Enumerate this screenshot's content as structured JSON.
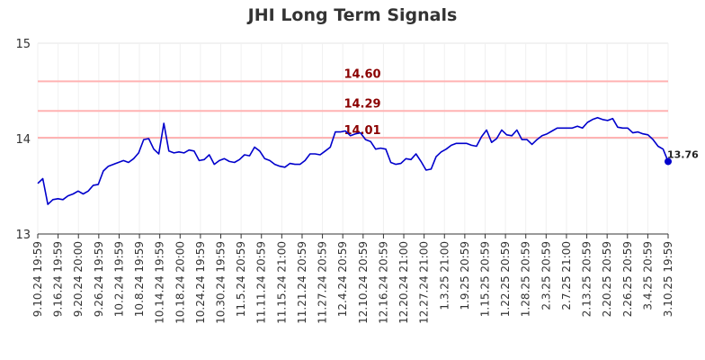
{
  "chart_data": {
    "type": "line",
    "title": "JHI Long Term Signals",
    "xlabel": "",
    "ylabel": "",
    "ylim": [
      13,
      15
    ],
    "yticks": [
      "13",
      "14",
      "15"
    ],
    "grid": true,
    "colors": {
      "line": "#0000cc",
      "signal_line": "#ffb3b3",
      "signal_text": "#8b0000"
    },
    "x_tick_labels": [
      "9.10.24 19:59",
      "9.16.24 19:59",
      "9.20.24 20:00",
      "9.26.24 19:59",
      "10.2.24 19:59",
      "10.8.24 19:59",
      "10.14.24 19:59",
      "10.18.24 20:00",
      "10.24.24 19:59",
      "10.30.24 19:59",
      "11.5.24 20:59",
      "11.11.24 20:59",
      "11.15.24 21:00",
      "11.21.24 20:59",
      "11.27.24 20:59",
      "12.4.24 20:59",
      "12.10.24 20:59",
      "12.16.24 20:59",
      "12.20.24 21:00",
      "12.27.24 21:00",
      "1.3.25 21:00",
      "1.9.25 20:59",
      "1.15.25 20:59",
      "1.22.25 20:59",
      "1.28.25 20:59",
      "2.3.25 20:59",
      "2.7.25 21:00",
      "2.13.25 20:59",
      "2.20.25 20:59",
      "2.26.25 20:59",
      "3.4.25 20:59",
      "3.10.25 19:59"
    ],
    "signals": [
      {
        "value": 14.6,
        "label": "14.60"
      },
      {
        "value": 14.29,
        "label": "14.29"
      },
      {
        "value": 14.01,
        "label": "14.01"
      }
    ],
    "last_value_label": "13.76",
    "series": [
      {
        "values": [
          13.53,
          13.58,
          13.31,
          13.36,
          13.37,
          13.36,
          13.4,
          13.42,
          13.45,
          13.42,
          13.45,
          13.51,
          13.52,
          13.66,
          13.71,
          13.73,
          13.75,
          13.77,
          13.75,
          13.79,
          13.85,
          13.99,
          14.0,
          13.89,
          13.84,
          14.16,
          13.87,
          13.85,
          13.86,
          13.85,
          13.88,
          13.87,
          13.77,
          13.78,
          13.83,
          13.73,
          13.77,
          13.79,
          13.76,
          13.75,
          13.78,
          13.83,
          13.82,
          13.91,
          13.87,
          13.79,
          13.77,
          13.73,
          13.71,
          13.7,
          13.74,
          13.73,
          13.73,
          13.77,
          13.84,
          13.84,
          13.83,
          13.87,
          13.91,
          14.07,
          14.07,
          14.08,
          14.03,
          14.05,
          14.06,
          13.99,
          13.97,
          13.89,
          13.9,
          13.89,
          13.75,
          13.73,
          13.74,
          13.79,
          13.78,
          13.84,
          13.76,
          13.67,
          13.68,
          13.81,
          13.86,
          13.89,
          13.93,
          13.95,
          13.95,
          13.95,
          13.93,
          13.92,
          14.02,
          14.09,
          13.96,
          14.0,
          14.09,
          14.04,
          14.03,
          14.09,
          13.99,
          13.99,
          13.94,
          13.99,
          14.03,
          14.05,
          14.08,
          14.11,
          14.11,
          14.11,
          14.11,
          14.13,
          14.11,
          14.17,
          14.2,
          14.22,
          14.2,
          14.19,
          14.21,
          14.12,
          14.11,
          14.11,
          14.06,
          14.07,
          14.05,
          14.04,
          13.99,
          13.92,
          13.89,
          13.76
        ]
      }
    ]
  }
}
